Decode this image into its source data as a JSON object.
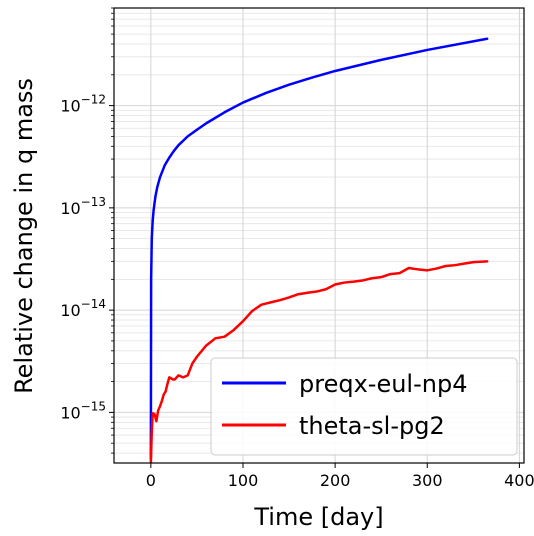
{
  "chart_data": {
    "type": "line",
    "title": "",
    "xlabel": "Time [day]",
    "ylabel": "Relative change in q mass",
    "xlim": [
      -40,
      405
    ],
    "ylim": [
      3.2e-16,
      9e-12
    ],
    "yscale": "log",
    "grid": true,
    "legend_position": "lower-right",
    "x_ticks": [
      {
        "value": 0,
        "label": "0"
      },
      {
        "value": 100,
        "label": "100"
      },
      {
        "value": 200,
        "label": "200"
      },
      {
        "value": 300,
        "label": "300"
      },
      {
        "value": 400,
        "label": "400"
      }
    ],
    "y_ticks": [
      {
        "value": 1e-15,
        "mantissa": "10",
        "exponent": "−15"
      },
      {
        "value": 1e-14,
        "mantissa": "10",
        "exponent": "−14"
      },
      {
        "value": 1e-13,
        "mantissa": "10",
        "exponent": "−13"
      },
      {
        "value": 1e-12,
        "mantissa": "10",
        "exponent": "−12"
      }
    ],
    "series": [
      {
        "name": "preqx-eul-np4",
        "color": "#0000ff",
        "x": [
          0,
          0.3,
          1,
          2,
          3,
          5,
          7,
          10,
          15,
          20,
          25,
          30,
          40,
          50,
          60,
          80,
          100,
          125,
          150,
          175,
          200,
          250,
          300,
          365
        ],
        "y": [
          3.5e-16,
          2e-14,
          5e-14,
          7.5e-14,
          9.5e-14,
          1.3e-13,
          1.6e-13,
          2e-13,
          2.6e-13,
          3.1e-13,
          3.6e-13,
          4.1e-13,
          5e-13,
          5.8e-13,
          6.7e-13,
          8.6e-13,
          1.07e-12,
          1.33e-12,
          1.6e-12,
          1.88e-12,
          2.18e-12,
          2.8e-12,
          3.5e-12,
          4.5e-12
        ]
      },
      {
        "name": "theta-sl-pg2",
        "color": "#ff0000",
        "x": [
          0,
          1,
          2,
          4,
          6,
          8,
          10,
          12,
          14,
          16,
          18,
          20,
          22,
          24,
          26,
          28,
          30,
          35,
          40,
          45,
          50,
          60,
          70,
          80,
          90,
          100,
          110,
          120,
          130,
          140,
          150,
          160,
          170,
          180,
          190,
          200,
          210,
          220,
          230,
          240,
          250,
          260,
          270,
          280,
          290,
          300,
          310,
          320,
          330,
          340,
          350,
          365
        ],
        "y": [
          3.2e-16,
          6.5e-16,
          9.8e-16,
          9.6e-16,
          8.2e-16,
          1.05e-15,
          1.15e-15,
          1.3e-15,
          1.5e-15,
          1.6e-15,
          1.9e-15,
          2.2e-15,
          2.15e-15,
          2.1e-15,
          2.1e-15,
          2.2e-15,
          2.3e-15,
          2.2e-15,
          2.3e-15,
          3e-15,
          3.5e-15,
          4.5e-15,
          5.3e-15,
          5.5e-15,
          6.4e-15,
          7.8e-15,
          9.8e-15,
          1.13e-14,
          1.19e-14,
          1.25e-14,
          1.33e-14,
          1.43e-14,
          1.48e-14,
          1.52e-14,
          1.6e-14,
          1.78e-14,
          1.86e-14,
          1.9e-14,
          1.95e-14,
          2.05e-14,
          2.1e-14,
          2.25e-14,
          2.3e-14,
          2.58e-14,
          2.5e-14,
          2.45e-14,
          2.55e-14,
          2.7e-14,
          2.75e-14,
          2.85e-14,
          2.95e-14,
          3e-14
        ]
      }
    ]
  }
}
